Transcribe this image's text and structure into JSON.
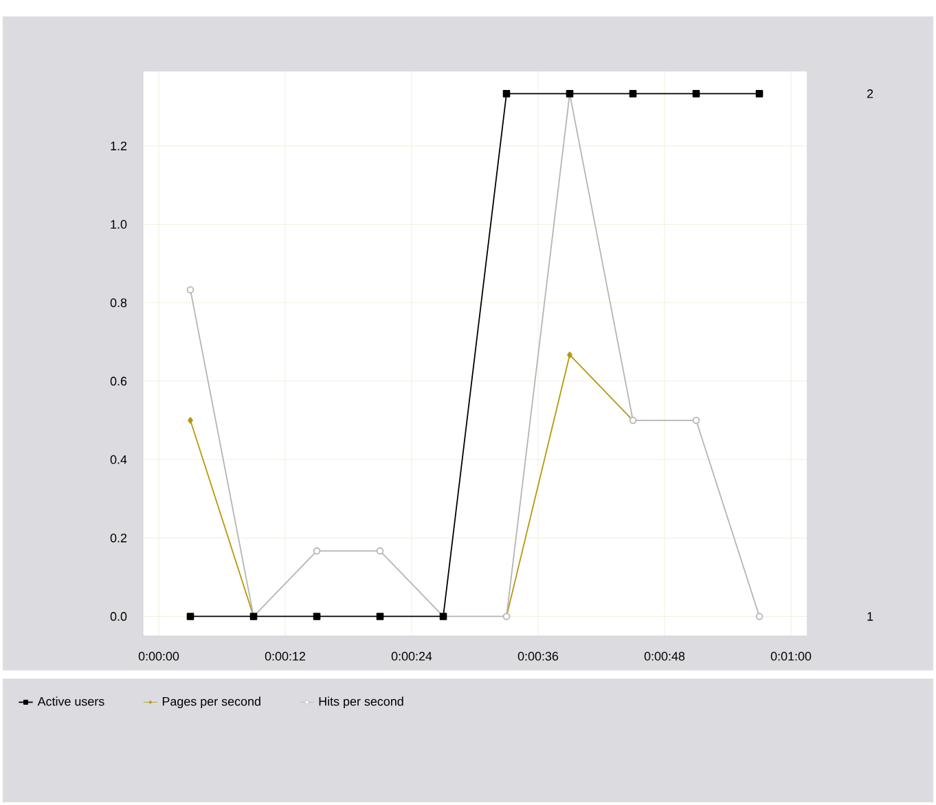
{
  "chart_data": {
    "type": "line",
    "x": [
      3,
      9,
      15,
      21,
      27,
      33,
      39,
      45,
      51,
      57
    ],
    "xlim": [
      -1.5,
      61.5
    ],
    "xticks": [
      {
        "value": 0,
        "label": "0:00:00"
      },
      {
        "value": 12,
        "label": "0:00:12"
      },
      {
        "value": 24,
        "label": "0:00:24"
      },
      {
        "value": 36,
        "label": "0:00:36"
      },
      {
        "value": 48,
        "label": "0:00:48"
      },
      {
        "value": 60,
        "label": "0:01:00"
      }
    ],
    "ylim": [
      -0.05,
      1.39
    ],
    "yticks": [
      {
        "value": 0,
        "label": "0.0"
      },
      {
        "value": 0.2,
        "label": "0.2"
      },
      {
        "value": 0.4,
        "label": "0.4"
      },
      {
        "value": 0.6,
        "label": "0.6"
      },
      {
        "value": 0.8,
        "label": "0.8"
      },
      {
        "value": 1.0,
        "label": "1.0"
      },
      {
        "value": 1.2,
        "label": "1.2"
      }
    ],
    "y2lim": [
      0.9625,
      2.0425
    ],
    "y2ticks": [
      1,
      2
    ],
    "grid": true,
    "legend": "bottom",
    "series": [
      {
        "name": "Active users",
        "color": "#000000",
        "marker": "square",
        "axis": "y2",
        "values": [
          1,
          1,
          1,
          1,
          1,
          2,
          2,
          2,
          2,
          2
        ]
      },
      {
        "name": "Pages per second",
        "color": "#b8960c",
        "marker": "diamond",
        "values": [
          0.5,
          0,
          null,
          null,
          null,
          0,
          0.667,
          0.5,
          null,
          null
        ]
      },
      {
        "name": "Hits per second",
        "color": "#b4b4b4",
        "marker": "circle",
        "values": [
          0.833,
          0,
          0.167,
          0.167,
          0,
          0,
          1.333,
          0.5,
          0.5,
          0
        ]
      }
    ]
  }
}
